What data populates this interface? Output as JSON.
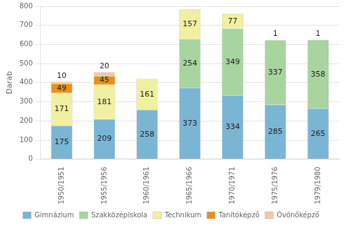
{
  "chart_data": {
    "type": "bar",
    "ylabel": "Darab",
    "categories": [
      "1950/1951",
      "1955/1956",
      "1960/1961",
      "1965/1966",
      "1970/1971",
      "1975/1976",
      "1979/1980"
    ],
    "series": [
      {
        "name": "Gimnázium",
        "color": "#7ab5d4",
        "values": [
          175,
          209,
          258,
          373,
          334,
          285,
          265
        ]
      },
      {
        "name": "Szakközépiskola",
        "color": "#a8d4a0",
        "values": [
          0,
          0,
          0,
          254,
          349,
          337,
          358
        ]
      },
      {
        "name": "Technikum",
        "color": "#f0f0a0",
        "values": [
          171,
          181,
          161,
          157,
          77,
          0,
          0
        ]
      },
      {
        "name": "Tanítóképző",
        "color": "#e8901a",
        "values": [
          49,
          45,
          0,
          0,
          0,
          0,
          0
        ]
      },
      {
        "name": "Óvónőképző",
        "color": "#f5c8a8",
        "values": [
          10,
          20,
          0,
          0,
          0,
          1,
          1
        ]
      }
    ],
    "ylim": [
      0,
      800
    ],
    "yticks": [
      0,
      100,
      200,
      300,
      400,
      500,
      600,
      700,
      800
    ],
    "grid": true,
    "stacked": true,
    "legend": "bottom",
    "data_labels": true
  }
}
